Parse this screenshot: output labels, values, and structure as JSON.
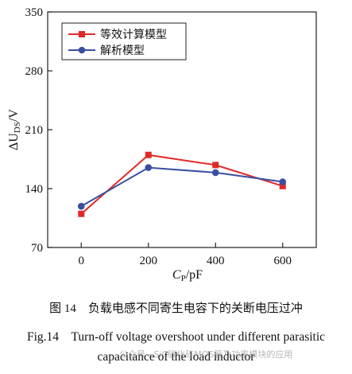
{
  "chart_data": {
    "type": "line",
    "categories": [
      "0",
      "200",
      "400",
      "600"
    ],
    "x": [
      0,
      200,
      400,
      600
    ],
    "xlim": [
      -100,
      700
    ],
    "ylim": [
      70,
      350
    ],
    "yticks": [
      70,
      140,
      210,
      280,
      350
    ],
    "xticks": [
      0,
      200,
      400,
      600
    ],
    "xlabel": {
      "main": "C",
      "sub": "P",
      "rest": "/pF"
    },
    "ylabel": {
      "pre": "ΔU",
      "sub": "DS",
      "rest": "/V"
    },
    "legend_position": "top-left",
    "grid": false,
    "series": [
      {
        "name": "等效计算模型",
        "values": [
          110,
          180,
          168,
          143
        ],
        "color": "#e02a2a",
        "marker": "square"
      },
      {
        "name": "解析模型",
        "values": [
          119,
          165,
          159,
          148
        ],
        "color": "#3a4fa0",
        "marker": "circle"
      }
    ]
  },
  "caption": {
    "zh": "图 14　负载电感不同寄生电容下的关断电压过冲",
    "en_line1": "Fig.14　Turn-off voltage overshoot under different parasitic",
    "en_line2": "capacitance of the load inductor"
  },
  "watermark": "公众号 · SiC碳化硅MOS管及功率模块的应用"
}
